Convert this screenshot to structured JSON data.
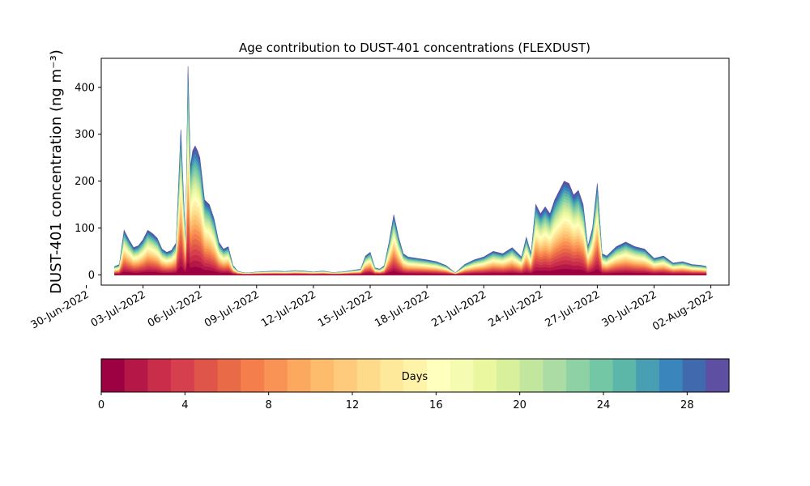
{
  "chart_data": {
    "type": "area",
    "title": "Age contribution to DUST-401 concentrations (FLEXDUST)",
    "ylabel": "DUST-401 concentration (ng m⁻³)",
    "xlabel": "",
    "ylim": [
      -22,
      462
    ],
    "xlim": [
      "2022-06-30T19:00",
      "2022-08-02T23:00"
    ],
    "yticks": [
      0,
      100,
      200,
      300,
      400
    ],
    "xticks": [
      "2022-06-30",
      "2022-07-03",
      "2022-07-06",
      "2022-07-09",
      "2022-07-12",
      "2022-07-15",
      "2022-07-18",
      "2022-07-21",
      "2022-07-24",
      "2022-07-27",
      "2022-07-30",
      "2022-08-02"
    ],
    "xticklabels": [
      "30-Jun-2022",
      "03-Jul-2022",
      "06-Jul-2022",
      "09-Jul-2022",
      "12-Jul-2022",
      "15-Jul-2022",
      "18-Jul-2022",
      "21-Jul-2022",
      "24-Jul-2022",
      "27-Jul-2022",
      "30-Jul-2022",
      "02-Aug-2022"
    ],
    "series_description": "stacked by particle age in days, 0 (bottom) to 30 (top)",
    "x": [
      "2022-07-01T12:00",
      "2022-07-01T18:00",
      "2022-07-02T00:00",
      "2022-07-02T06:00",
      "2022-07-02T12:00",
      "2022-07-02T18:00",
      "2022-07-03T00:00",
      "2022-07-03T06:00",
      "2022-07-03T12:00",
      "2022-07-03T18:00",
      "2022-07-04T00:00",
      "2022-07-04T06:00",
      "2022-07-04T12:00",
      "2022-07-04T18:00",
      "2022-07-05T00:00",
      "2022-07-05T03:00",
      "2022-07-05T06:00",
      "2022-07-05T09:00",
      "2022-07-05T12:00",
      "2022-07-05T15:00",
      "2022-07-05T18:00",
      "2022-07-05T21:00",
      "2022-07-06T00:00",
      "2022-07-06T06:00",
      "2022-07-06T12:00",
      "2022-07-06T18:00",
      "2022-07-07T00:00",
      "2022-07-07T06:00",
      "2022-07-07T12:00",
      "2022-07-07T18:00",
      "2022-07-08T00:00",
      "2022-07-08T06:00",
      "2022-07-08T12:00",
      "2022-07-08T18:00",
      "2022-07-09T00:00",
      "2022-07-09T12:00",
      "2022-07-10T00:00",
      "2022-07-10T12:00",
      "2022-07-11T00:00",
      "2022-07-11T12:00",
      "2022-07-12T00:00",
      "2022-07-12T12:00",
      "2022-07-13T00:00",
      "2022-07-13T12:00",
      "2022-07-14T00:00",
      "2022-07-14T12:00",
      "2022-07-14T18:00",
      "2022-07-15T00:00",
      "2022-07-15T06:00",
      "2022-07-15T12:00",
      "2022-07-15T18:00",
      "2022-07-16T00:00",
      "2022-07-16T06:00",
      "2022-07-16T12:00",
      "2022-07-16T18:00",
      "2022-07-17T00:00",
      "2022-07-17T12:00",
      "2022-07-18T00:00",
      "2022-07-18T12:00",
      "2022-07-19T00:00",
      "2022-07-19T12:00",
      "2022-07-20T00:00",
      "2022-07-20T12:00",
      "2022-07-21T00:00",
      "2022-07-21T12:00",
      "2022-07-22T00:00",
      "2022-07-22T12:00",
      "2022-07-23T00:00",
      "2022-07-23T06:00",
      "2022-07-23T12:00",
      "2022-07-23T18:00",
      "2022-07-24T00:00",
      "2022-07-24T06:00",
      "2022-07-24T12:00",
      "2022-07-24T18:00",
      "2022-07-25T00:00",
      "2022-07-25T06:00",
      "2022-07-25T12:00",
      "2022-07-25T18:00",
      "2022-07-26T00:00",
      "2022-07-26T06:00",
      "2022-07-26T12:00",
      "2022-07-26T18:00",
      "2022-07-27T00:00",
      "2022-07-27T06:00",
      "2022-07-27T12:00",
      "2022-07-27T18:00",
      "2022-07-28T00:00",
      "2022-07-28T12:00",
      "2022-07-29T00:00",
      "2022-07-29T12:00",
      "2022-07-30T00:00",
      "2022-07-30T12:00",
      "2022-07-31T00:00",
      "2022-07-31T12:00",
      "2022-08-01T00:00",
      "2022-08-01T12:00",
      "2022-08-01T18:00"
    ],
    "total": [
      18,
      22,
      95,
      75,
      58,
      62,
      75,
      95,
      88,
      78,
      55,
      48,
      52,
      68,
      310,
      180,
      60,
      445,
      230,
      265,
      275,
      265,
      250,
      160,
      150,
      120,
      70,
      55,
      60,
      20,
      8,
      5,
      4,
      5,
      6,
      7,
      8,
      7,
      9,
      8,
      6,
      8,
      5,
      6,
      9,
      12,
      40,
      48,
      15,
      12,
      20,
      70,
      128,
      80,
      45,
      38,
      35,
      32,
      28,
      20,
      4,
      22,
      32,
      38,
      50,
      45,
      58,
      38,
      80,
      45,
      150,
      130,
      145,
      130,
      160,
      180,
      200,
      195,
      170,
      180,
      150,
      60,
      100,
      195,
      45,
      40,
      50,
      60,
      70,
      60,
      55,
      35,
      40,
      25,
      28,
      22,
      20,
      18
    ],
    "colorbar": {
      "label": "Days",
      "range": [
        0,
        30
      ],
      "ticks": [
        0,
        4,
        8,
        12,
        16,
        20,
        24,
        28
      ],
      "colors": [
        "#9e0142",
        "#b51846",
        "#c92d4a",
        "#d6404e",
        "#e0554a",
        "#e96a47",
        "#f47e4c",
        "#f89355",
        "#fca85e",
        "#fdbb6c",
        "#fdcb7b",
        "#fedb8b",
        "#fee89a",
        "#fff3aa",
        "#ffffbe",
        "#f6fbb2",
        "#eaf79f",
        "#d8ef9b",
        "#c3e69f",
        "#aadca4",
        "#8ed1a4",
        "#74c7a4",
        "#5db7a9",
        "#489eb3",
        "#3a85bc",
        "#4169ad",
        "#5e4fa2"
      ]
    }
  }
}
